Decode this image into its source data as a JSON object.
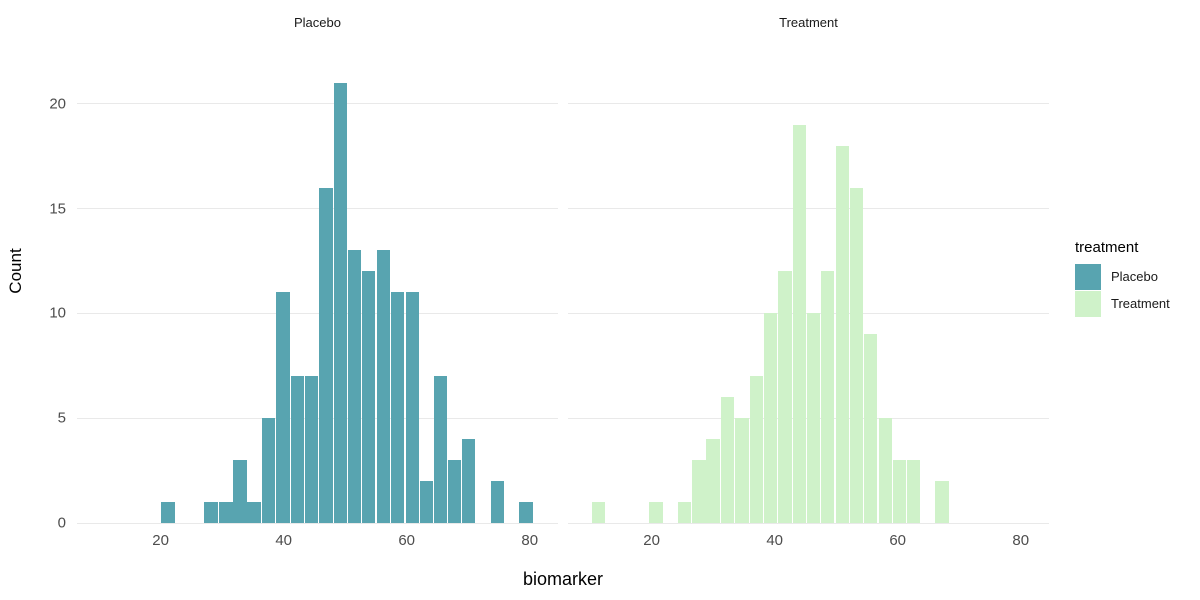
{
  "chart_data": {
    "type": "histogram",
    "title": "",
    "xlabel": "biomarker",
    "ylabel": "Count",
    "x_ticks": [
      20,
      40,
      60,
      80
    ],
    "y_ticks": [
      0,
      5,
      10,
      15,
      20
    ],
    "xlim": [
      6.4,
      84.6
    ],
    "ylim": [
      0,
      22.8
    ],
    "bin_width": 2.33,
    "grid": "horizontal-major-only",
    "gridline_color": "#e9e9e9",
    "tick_label_color": "#4d4d4d",
    "legend": {
      "title": "treatment",
      "position": "right",
      "entries": [
        {
          "label": "Placebo",
          "color": "#58A4B0"
        },
        {
          "label": "Treatment",
          "color": "#CFF2C9"
        }
      ]
    },
    "facets": [
      {
        "label": "Placebo",
        "color": "#58A4B0",
        "bins": [
          [
            21.2,
            1
          ],
          [
            28.2,
            1
          ],
          [
            30.6,
            1
          ],
          [
            32.9,
            3
          ],
          [
            35.2,
            1
          ],
          [
            37.5,
            5
          ],
          [
            39.9,
            11
          ],
          [
            42.2,
            7
          ],
          [
            44.5,
            7
          ],
          [
            46.9,
            16
          ],
          [
            49.2,
            21
          ],
          [
            51.5,
            13
          ],
          [
            53.8,
            12
          ],
          [
            56.2,
            13
          ],
          [
            58.5,
            11
          ],
          [
            60.9,
            11
          ],
          [
            63.2,
            2
          ],
          [
            65.5,
            7
          ],
          [
            67.8,
            3
          ],
          [
            70.1,
            4
          ],
          [
            74.8,
            2
          ],
          [
            79.4,
            1
          ]
        ]
      },
      {
        "label": "Treatment",
        "color": "#CFF2C9",
        "bins": [
          [
            11.4,
            1
          ],
          [
            20.7,
            1
          ],
          [
            25.3,
            1
          ],
          [
            27.7,
            3
          ],
          [
            30.0,
            4
          ],
          [
            32.3,
            6
          ],
          [
            34.7,
            5
          ],
          [
            37.0,
            7
          ],
          [
            39.3,
            10
          ],
          [
            41.7,
            12
          ],
          [
            44.0,
            19
          ],
          [
            46.3,
            10
          ],
          [
            48.6,
            12
          ],
          [
            51.0,
            18
          ],
          [
            53.3,
            16
          ],
          [
            55.6,
            9
          ],
          [
            58.0,
            5
          ],
          [
            60.3,
            3
          ],
          [
            62.6,
            3
          ],
          [
            67.2,
            2
          ]
        ]
      }
    ]
  }
}
